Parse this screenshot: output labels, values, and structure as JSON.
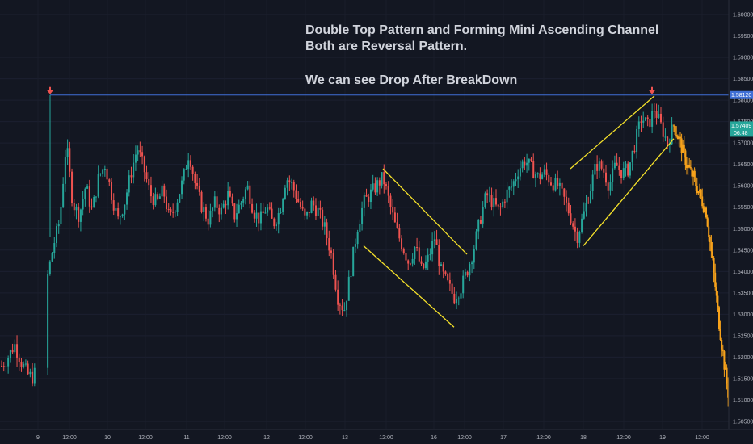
{
  "annotation": {
    "line1": "Double Top Pattern and Forming Mini Ascending Channel",
    "line2": "Both are Reversal Pattern.",
    "line3": "We can see  Drop After BreakDown"
  },
  "price_tags": {
    "level": "1.58120",
    "current": "1.57409",
    "countdown": "06:48"
  },
  "colors": {
    "background": "#131722",
    "up": "#26a69a",
    "down": "#ef5350",
    "projection": "#f7a21b",
    "pattern_lines": "#f5e12a",
    "level_line": "#3f6fd6",
    "arrow": "#ef5350"
  },
  "chart_data": {
    "type": "candlestick",
    "y_ticks": [
      "1.60000",
      "1.59500",
      "1.59000",
      "1.58500",
      "1.58000",
      "1.57500",
      "1.57000",
      "1.56500",
      "1.56000",
      "1.55500",
      "1.55000",
      "1.54500",
      "1.54000",
      "1.53500",
      "1.53000",
      "1.52500",
      "1.52000",
      "1.51500",
      "1.51000",
      "1.50500"
    ],
    "x_ticks": [
      "9",
      "12:00",
      "10",
      "12:00",
      "11",
      "12:00",
      "12",
      "12:00",
      "13",
      "12:00",
      "16",
      "12:00",
      "17",
      "12:00",
      "18",
      "12:00",
      "19",
      "12:00"
    ],
    "ylim": [
      1.503,
      1.602
    ],
    "horizontal_level": 1.5812,
    "double_top_markers": [
      "first top",
      "second top"
    ],
    "price_path": [
      [
        0,
        1.518
      ],
      [
        1,
        1.52
      ],
      [
        2,
        1.523
      ],
      [
        3,
        1.519
      ],
      [
        4,
        1.516
      ],
      [
        5,
        1.515
      ],
      [
        7,
        1.538
      ],
      [
        8,
        1.546
      ],
      [
        9,
        1.552
      ],
      [
        10,
        1.57
      ],
      [
        11,
        1.556
      ],
      [
        12,
        1.553
      ],
      [
        13,
        1.56
      ],
      [
        14,
        1.554
      ],
      [
        15,
        1.562
      ],
      [
        16,
        1.565
      ],
      [
        17,
        1.558
      ],
      [
        18,
        1.552
      ],
      [
        19,
        1.556
      ],
      [
        20,
        1.563
      ],
      [
        21,
        1.569
      ],
      [
        22,
        1.564
      ],
      [
        23,
        1.558
      ],
      [
        24,
        1.556
      ],
      [
        25,
        1.559
      ],
      [
        26,
        1.552
      ],
      [
        27,
        1.556
      ],
      [
        28,
        1.561
      ],
      [
        29,
        1.568
      ],
      [
        30,
        1.56
      ],
      [
        31,
        1.555
      ],
      [
        32,
        1.552
      ],
      [
        33,
        1.556
      ],
      [
        34,
        1.554
      ],
      [
        35,
        1.558
      ],
      [
        36,
        1.553
      ],
      [
        37,
        1.556
      ],
      [
        38,
        1.56
      ],
      [
        39,
        1.554
      ],
      [
        40,
        1.552
      ],
      [
        41,
        1.555
      ],
      [
        42,
        1.551
      ],
      [
        43,
        1.554
      ],
      [
        44,
        1.562
      ],
      [
        45,
        1.56
      ],
      [
        46,
        1.556
      ],
      [
        47,
        1.552
      ],
      [
        48,
        1.556
      ],
      [
        49,
        1.554
      ],
      [
        50,
        1.55
      ],
      [
        51,
        1.544
      ],
      [
        52,
        1.534
      ],
      [
        53,
        1.531
      ],
      [
        54,
        1.54
      ],
      [
        55,
        1.55
      ],
      [
        56,
        1.556
      ],
      [
        57,
        1.558
      ],
      [
        58,
        1.56
      ],
      [
        59,
        1.562
      ],
      [
        60,
        1.556
      ],
      [
        61,
        1.55
      ],
      [
        62,
        1.546
      ],
      [
        63,
        1.542
      ],
      [
        64,
        1.546
      ],
      [
        65,
        1.54
      ],
      [
        66,
        1.543
      ],
      [
        67,
        1.548
      ],
      [
        68,
        1.54
      ],
      [
        69,
        1.537
      ],
      [
        70,
        1.534
      ],
      [
        71,
        1.536
      ],
      [
        72,
        1.54
      ],
      [
        73,
        1.545
      ],
      [
        74,
        1.552
      ],
      [
        75,
        1.558
      ],
      [
        76,
        1.556
      ],
      [
        77,
        1.554
      ],
      [
        78,
        1.558
      ],
      [
        79,
        1.56
      ],
      [
        80,
        1.564
      ],
      [
        81,
        1.566
      ],
      [
        82,
        1.564
      ],
      [
        83,
        1.562
      ],
      [
        84,
        1.563
      ],
      [
        85,
        1.561
      ],
      [
        86,
        1.56
      ],
      [
        87,
        1.557
      ],
      [
        88,
        1.553
      ],
      [
        89,
        1.548
      ],
      [
        90,
        1.553
      ],
      [
        91,
        1.559
      ],
      [
        92,
        1.565
      ],
      [
        93,
        1.564
      ],
      [
        94,
        1.56
      ],
      [
        95,
        1.565
      ],
      [
        96,
        1.563
      ],
      [
        97,
        1.564
      ],
      [
        98,
        1.57
      ],
      [
        99,
        1.576
      ],
      [
        100,
        1.574
      ],
      [
        101,
        1.578
      ],
      [
        102,
        1.574
      ],
      [
        103,
        1.57
      ],
      [
        104,
        1.5741
      ]
    ],
    "projection_path": [
      [
        104,
        1.5741
      ],
      [
        105,
        1.57
      ],
      [
        106,
        1.565
      ],
      [
        107,
        1.562
      ],
      [
        108,
        1.558
      ],
      [
        109,
        1.554
      ],
      [
        110,
        1.542
      ],
      [
        111,
        1.528
      ],
      [
        112,
        1.516
      ],
      [
        113,
        1.505
      ]
    ],
    "patterns": [
      {
        "name": "descending channel",
        "upper": [
          [
            59,
            1.564
          ],
          [
            72,
            1.544
          ]
        ],
        "lower": [
          [
            56,
            1.546
          ],
          [
            70,
            1.527
          ]
        ]
      },
      {
        "name": "ascending channel",
        "upper": [
          [
            88,
            1.564
          ],
          [
            101,
            1.581
          ]
        ],
        "lower": [
          [
            90,
            1.546
          ],
          [
            104,
            1.571
          ]
        ]
      }
    ]
  }
}
